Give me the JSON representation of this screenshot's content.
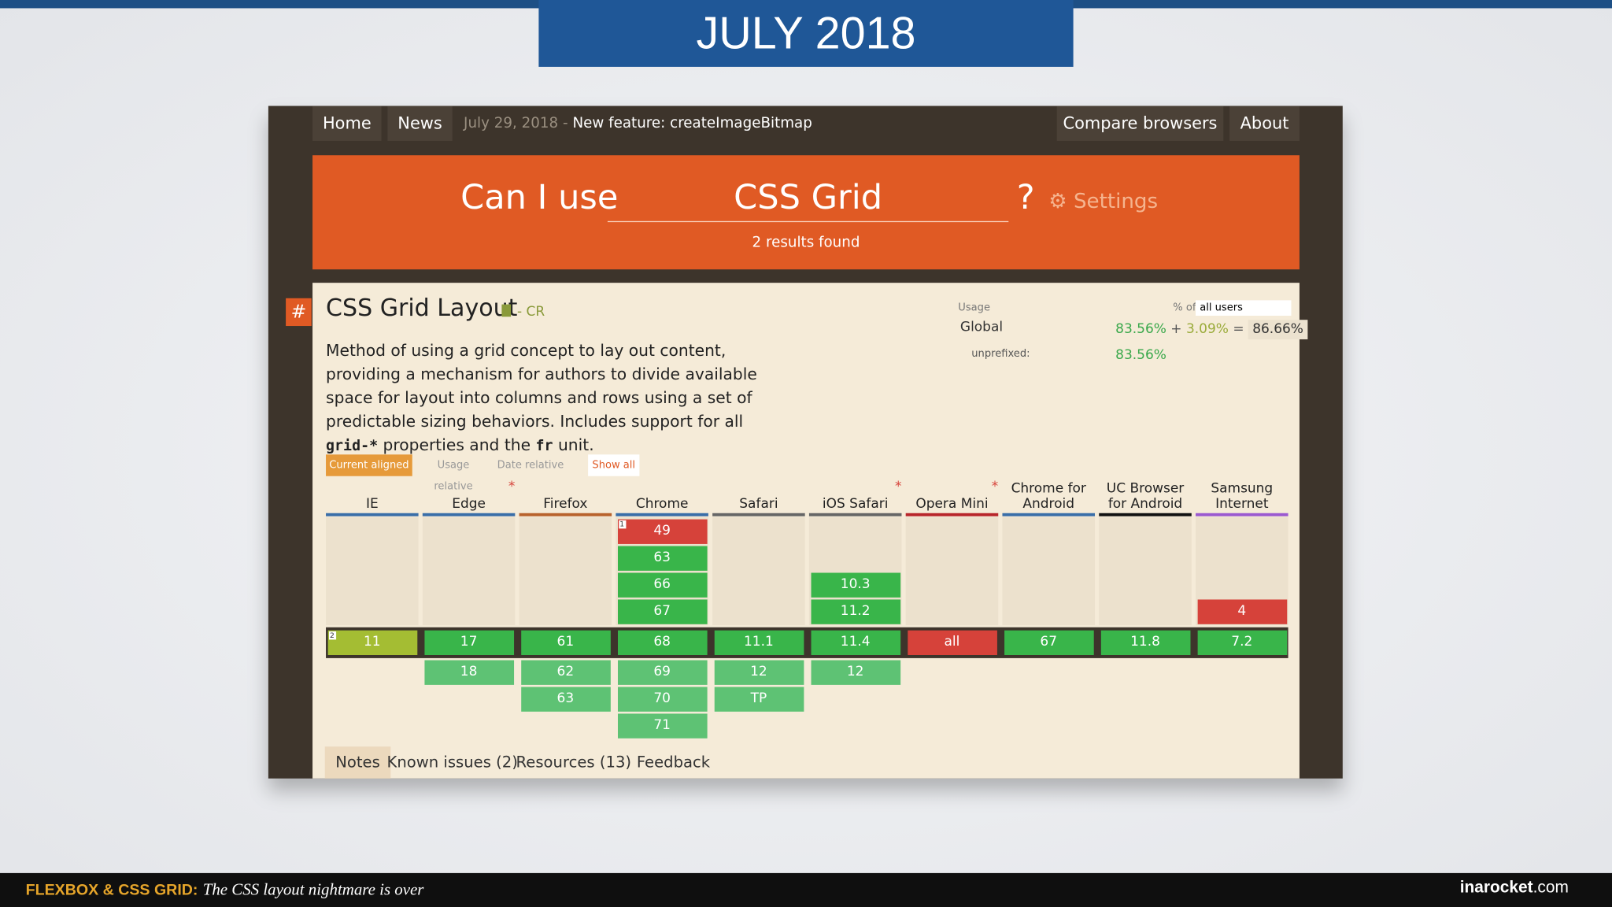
{
  "slide": {
    "title": "JULY 2018",
    "footer_title": "FLEXBOX & CSS GRID:",
    "footer_subtitle": "The CSS layout nightmare is over",
    "footer_brand": "inarocket",
    "footer_brand_suffix": ".com"
  },
  "nav": {
    "left": [
      "Home",
      "News"
    ],
    "news_date": "July 29, 2018",
    "news_dash": "-",
    "news_text": "New feature: createImageBitmap",
    "right": [
      "Compare browsers",
      "About"
    ]
  },
  "search": {
    "prefix": "Can I use",
    "query": "CSS Grid",
    "suffix": "?",
    "settings": "Settings",
    "results": "2 results found"
  },
  "feature": {
    "hash": "#",
    "title": "CSS Grid Layout",
    "status": "- CR",
    "description": [
      "Method of using a grid concept to lay out content, providing a mechanism for authors to divide available space for layout into columns and rows using a set of predictable sizing behaviors. Includes support for all",
      "grid-*",
      "properties and the",
      "fr",
      "unit."
    ],
    "usage": {
      "label": "Usage",
      "percent_of": "% of",
      "select": "all users",
      "global": "Global",
      "supported": "83.56%",
      "plus": "+",
      "partial": "3.09%",
      "equals": "=",
      "total": "86.66%",
      "unprefixed_label": "unprefixed:",
      "unprefixed": "83.56%"
    },
    "view_tabs": [
      "Current aligned",
      "Usage relative",
      "Date relative"
    ],
    "show_all": "Show all",
    "browsers": [
      {
        "name": "IE",
        "color": "#3a6ea8",
        "past": [],
        "current": {
          "v": "11",
          "color": "#a4bd33",
          "note": "2"
        },
        "future": []
      },
      {
        "name": "Edge",
        "asterisk": "*",
        "color": "#3a6ea8",
        "past": [],
        "current": {
          "v": "17",
          "color": "#39b54a"
        },
        "future": [
          {
            "v": "18",
            "color": "#5ec274"
          }
        ]
      },
      {
        "name": "Firefox",
        "color": "#b8622c",
        "past": [],
        "current": {
          "v": "61",
          "color": "#39b54a"
        },
        "future": [
          {
            "v": "62",
            "color": "#5ec274"
          },
          {
            "v": "63",
            "color": "#5ec274"
          }
        ]
      },
      {
        "name": "Chrome",
        "color": "#3a6ea8",
        "past": [
          {
            "v": "49",
            "color": "#d6423a",
            "note": "1"
          },
          {
            "v": "63",
            "color": "#39b54a"
          },
          {
            "v": "66",
            "color": "#39b54a"
          },
          {
            "v": "67",
            "color": "#39b54a"
          }
        ],
        "current": {
          "v": "68",
          "color": "#39b54a"
        },
        "future": [
          {
            "v": "69",
            "color": "#5ec274"
          },
          {
            "v": "70",
            "color": "#5ec274"
          },
          {
            "v": "71",
            "color": "#5ec274"
          }
        ]
      },
      {
        "name": "Safari",
        "color": "#666666",
        "past": [],
        "current": {
          "v": "11.1",
          "color": "#39b54a"
        },
        "future": [
          {
            "v": "12",
            "color": "#5ec274"
          },
          {
            "v": "TP",
            "color": "#5ec274"
          }
        ]
      },
      {
        "name": "iOS Safari",
        "asterisk": "*",
        "color": "#666666",
        "past": [
          {
            "v": "10.3",
            "color": "#39b54a"
          },
          {
            "v": "11.2",
            "color": "#39b54a"
          }
        ],
        "current": {
          "v": "11.4",
          "color": "#39b54a"
        },
        "future": [
          {
            "v": "12",
            "color": "#5ec274"
          }
        ]
      },
      {
        "name": "Opera Mini",
        "asterisk": "*",
        "color": "#b8262b",
        "past": [],
        "current": {
          "v": "all",
          "color": "#d6423a"
        },
        "future": []
      },
      {
        "name": "Chrome for Android",
        "color": "#3a6ea8",
        "past": [],
        "current": {
          "v": "67",
          "color": "#39b54a"
        },
        "future": []
      },
      {
        "name": "UC Browser for Android",
        "color": "#111111",
        "past": [],
        "current": {
          "v": "11.8",
          "color": "#39b54a"
        },
        "future": []
      },
      {
        "name": "Samsung Internet",
        "color": "#9b59d0",
        "past": [
          {
            "v": "4",
            "color": "#d6423a"
          }
        ],
        "current": {
          "v": "7.2",
          "color": "#39b54a"
        },
        "future": []
      }
    ],
    "bottom_tabs": [
      "Notes",
      "Known issues (2)",
      "Resources (13)",
      "Feedback"
    ]
  }
}
